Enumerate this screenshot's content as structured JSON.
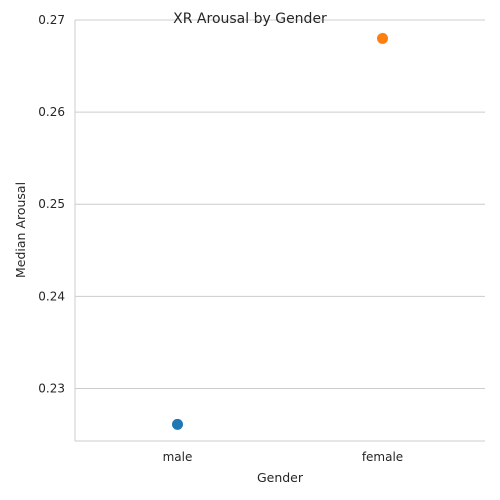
{
  "chart_data": {
    "type": "scatter",
    "title": "XR Arousal by Gender",
    "xlabel": "Gender",
    "ylabel": "Median Arousal",
    "categories": [
      "male",
      "female"
    ],
    "values": [
      0.2261,
      0.268
    ],
    "point_colors": [
      "#1f77b4",
      "#ff7f0e"
    ],
    "yticks": [
      "0.23",
      "0.24",
      "0.25",
      "0.26",
      "0.27"
    ],
    "ylim": [
      0.2243,
      0.27
    ],
    "grid": "horizontal",
    "legend": "none"
  }
}
